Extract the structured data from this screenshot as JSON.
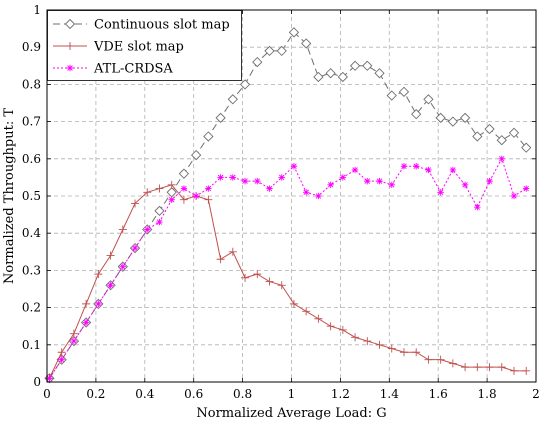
{
  "chart_data": {
    "type": "line",
    "xlabel": "Normalized Average Load: G",
    "ylabel": "Normalized Throughput: T",
    "xlim": [
      0,
      2
    ],
    "ylim": [
      0,
      1
    ],
    "xticks": [
      0,
      0.2,
      0.4,
      0.6,
      0.8,
      1,
      1.2,
      1.4,
      1.6,
      1.8,
      2
    ],
    "yticks": [
      0,
      0.1,
      0.2,
      0.3,
      0.4,
      0.5,
      0.6,
      0.7,
      0.8,
      0.9,
      1
    ],
    "xtick_labels": [
      "0",
      "0.2",
      "0.4",
      "0.6",
      "0.8",
      "1",
      "1.2",
      "1.4",
      "1.6",
      "1.8",
      "2"
    ],
    "ytick_labels": [
      "0",
      "0.1",
      "0.2",
      "0.3",
      "0.4",
      "0.5",
      "0.6",
      "0.7",
      "0.8",
      "0.9",
      "1"
    ],
    "grid": true,
    "legend_position": "top-left",
    "series": [
      {
        "name": "Continuous slot map",
        "color": "#6e6e6e",
        "marker": "diamond",
        "dash": "dashed",
        "x": [
          0.01,
          0.06,
          0.11,
          0.16,
          0.21,
          0.26,
          0.31,
          0.36,
          0.41,
          0.46,
          0.51,
          0.56,
          0.61,
          0.66,
          0.71,
          0.76,
          0.81,
          0.86,
          0.91,
          0.96,
          1.01,
          1.06,
          1.11,
          1.16,
          1.21,
          1.26,
          1.31,
          1.36,
          1.41,
          1.46,
          1.51,
          1.56,
          1.61,
          1.66,
          1.71,
          1.76,
          1.81,
          1.86,
          1.91,
          1.96
        ],
        "y": [
          0.01,
          0.06,
          0.11,
          0.16,
          0.21,
          0.26,
          0.31,
          0.36,
          0.41,
          0.46,
          0.51,
          0.56,
          0.61,
          0.66,
          0.71,
          0.76,
          0.8,
          0.86,
          0.89,
          0.89,
          0.94,
          0.91,
          0.82,
          0.83,
          0.82,
          0.85,
          0.85,
          0.83,
          0.77,
          0.78,
          0.72,
          0.76,
          0.71,
          0.7,
          0.71,
          0.66,
          0.68,
          0.65,
          0.67,
          0.63
        ]
      },
      {
        "name": "VDE slot map",
        "color": "#c0504d",
        "marker": "plus",
        "dash": "solid",
        "x": [
          0.01,
          0.06,
          0.11,
          0.16,
          0.21,
          0.26,
          0.31,
          0.36,
          0.41,
          0.46,
          0.51,
          0.56,
          0.61,
          0.66,
          0.71,
          0.76,
          0.81,
          0.86,
          0.91,
          0.96,
          1.01,
          1.06,
          1.11,
          1.16,
          1.21,
          1.26,
          1.31,
          1.36,
          1.41,
          1.46,
          1.51,
          1.56,
          1.61,
          1.66,
          1.71,
          1.76,
          1.81,
          1.86,
          1.91,
          1.96
        ],
        "y": [
          0.01,
          0.08,
          0.13,
          0.21,
          0.29,
          0.34,
          0.41,
          0.48,
          0.51,
          0.52,
          0.53,
          0.49,
          0.5,
          0.49,
          0.33,
          0.35,
          0.28,
          0.29,
          0.27,
          0.26,
          0.21,
          0.19,
          0.17,
          0.15,
          0.14,
          0.12,
          0.11,
          0.1,
          0.09,
          0.08,
          0.08,
          0.06,
          0.06,
          0.05,
          0.04,
          0.04,
          0.04,
          0.04,
          0.03,
          0.03
        ]
      },
      {
        "name": "ATL-CRDSA",
        "color": "#ff00ff",
        "marker": "star",
        "dash": "dotted",
        "x": [
          0.01,
          0.06,
          0.11,
          0.16,
          0.21,
          0.26,
          0.31,
          0.36,
          0.41,
          0.46,
          0.51,
          0.56,
          0.61,
          0.66,
          0.71,
          0.76,
          0.81,
          0.86,
          0.91,
          0.96,
          1.01,
          1.06,
          1.11,
          1.16,
          1.21,
          1.26,
          1.31,
          1.36,
          1.41,
          1.46,
          1.51,
          1.56,
          1.61,
          1.66,
          1.71,
          1.76,
          1.81,
          1.86,
          1.91,
          1.96
        ],
        "y": [
          0.01,
          0.06,
          0.11,
          0.16,
          0.21,
          0.26,
          0.31,
          0.36,
          0.41,
          0.43,
          0.49,
          0.52,
          0.5,
          0.52,
          0.55,
          0.55,
          0.54,
          0.54,
          0.52,
          0.55,
          0.58,
          0.51,
          0.5,
          0.53,
          0.55,
          0.57,
          0.54,
          0.54,
          0.53,
          0.58,
          0.58,
          0.57,
          0.51,
          0.57,
          0.53,
          0.47,
          0.54,
          0.6,
          0.5,
          0.52
        ]
      }
    ]
  }
}
